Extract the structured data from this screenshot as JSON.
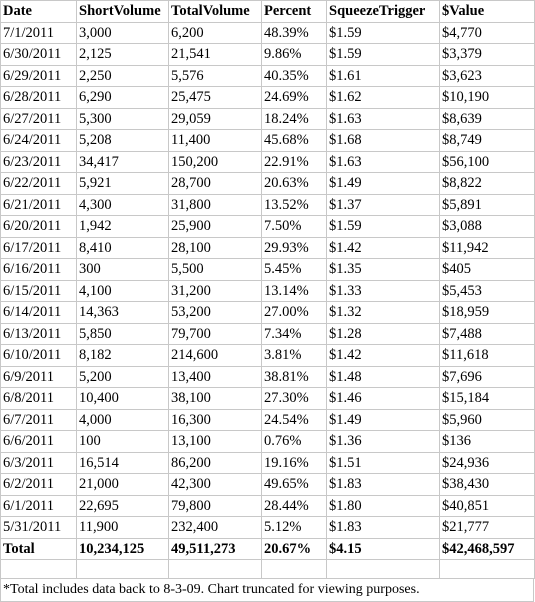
{
  "table": {
    "headers": [
      "Date",
      "ShortVolume",
      "TotalVolume",
      "Percent",
      "SqueezeTrigger",
      "$Value"
    ],
    "rows": [
      [
        "7/1/2011",
        "3,000",
        "6,200",
        "48.39%",
        "$1.59",
        "$4,770"
      ],
      [
        "6/30/2011",
        "2,125",
        "21,541",
        "9.86%",
        "$1.59",
        "$3,379"
      ],
      [
        "6/29/2011",
        "2,250",
        "5,576",
        "40.35%",
        "$1.61",
        "$3,623"
      ],
      [
        "6/28/2011",
        "6,290",
        "25,475",
        "24.69%",
        "$1.62",
        "$10,190"
      ],
      [
        "6/27/2011",
        "5,300",
        "29,059",
        "18.24%",
        "$1.63",
        "$8,639"
      ],
      [
        "6/24/2011",
        "5,208",
        "11,400",
        "45.68%",
        "$1.68",
        "$8,749"
      ],
      [
        "6/23/2011",
        "34,417",
        "150,200",
        "22.91%",
        "$1.63",
        "$56,100"
      ],
      [
        "6/22/2011",
        "5,921",
        "28,700",
        "20.63%",
        "$1.49",
        "$8,822"
      ],
      [
        "6/21/2011",
        "4,300",
        "31,800",
        "13.52%",
        "$1.37",
        "$5,891"
      ],
      [
        "6/20/2011",
        "1,942",
        "25,900",
        "7.50%",
        "$1.59",
        "$3,088"
      ],
      [
        "6/17/2011",
        "8,410",
        "28,100",
        "29.93%",
        "$1.42",
        "$11,942"
      ],
      [
        "6/16/2011",
        "300",
        "5,500",
        "5.45%",
        "$1.35",
        "$405"
      ],
      [
        "6/15/2011",
        "4,100",
        "31,200",
        "13.14%",
        "$1.33",
        "$5,453"
      ],
      [
        "6/14/2011",
        "14,363",
        "53,200",
        "27.00%",
        "$1.32",
        "$18,959"
      ],
      [
        "6/13/2011",
        "5,850",
        "79,700",
        "7.34%",
        "$1.28",
        "$7,488"
      ],
      [
        "6/10/2011",
        "8,182",
        "214,600",
        "3.81%",
        "$1.42",
        "$11,618"
      ],
      [
        "6/9/2011",
        "5,200",
        "13,400",
        "38.81%",
        "$1.48",
        "$7,696"
      ],
      [
        "6/8/2011",
        "10,400",
        "38,100",
        "27.30%",
        "$1.46",
        "$15,184"
      ],
      [
        "6/7/2011",
        "4,000",
        "16,300",
        "24.54%",
        "$1.49",
        "$5,960"
      ],
      [
        "6/6/2011",
        "100",
        "13,100",
        "0.76%",
        "$1.36",
        "$136"
      ],
      [
        "6/3/2011",
        "16,514",
        "86,200",
        "19.16%",
        "$1.51",
        "$24,936"
      ],
      [
        "6/2/2011",
        "21,000",
        "42,300",
        "49.65%",
        "$1.83",
        "$38,430"
      ],
      [
        "6/1/2011",
        "22,695",
        "79,800",
        "28.44%",
        "$1.80",
        "$40,851"
      ],
      [
        "5/31/2011",
        "11,900",
        "232,400",
        "5.12%",
        "$1.83",
        "$21,777"
      ]
    ],
    "total": [
      "Total",
      "10,234,125",
      "49,511,273",
      "20.67%",
      "$4.15",
      "$42,468,597"
    ]
  },
  "footnote": "*Total includes data back to 8-3-09. Chart truncated for viewing purposes."
}
